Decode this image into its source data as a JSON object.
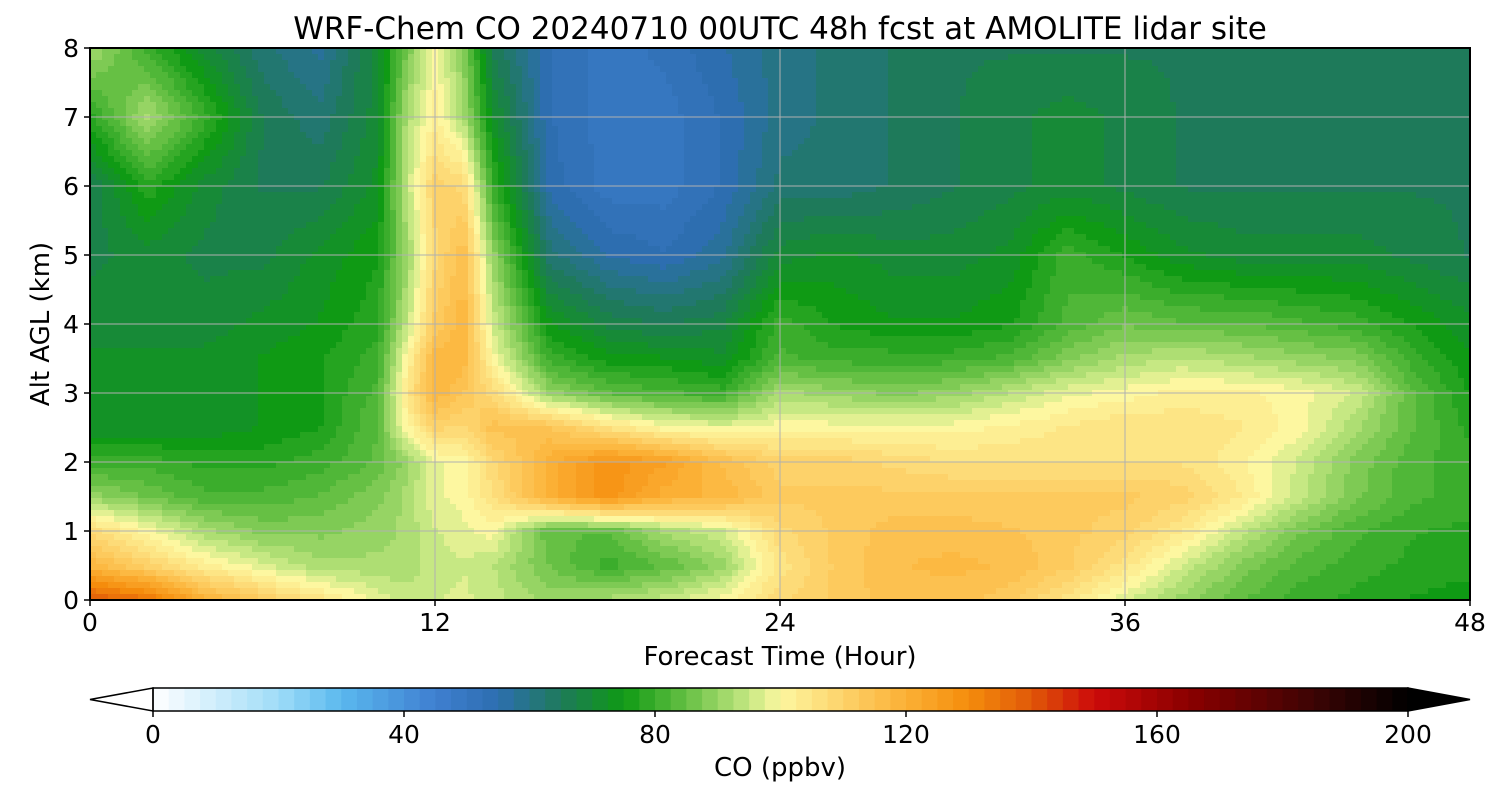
{
  "chart_data": {
    "type": "heatmap",
    "title": "WRF-Chem CO  20240710 00UTC 48h fcst at AMOLITE lidar site",
    "xlabel": "Forecast Time (Hour)",
    "ylabel": "Alt AGL (km)",
    "xlim": [
      0,
      48
    ],
    "ylim": [
      0,
      8
    ],
    "xticks": [
      0,
      12,
      24,
      36,
      48
    ],
    "yticks": [
      0,
      1,
      2,
      3,
      4,
      5,
      6,
      7,
      8
    ],
    "grid": true,
    "colorbar": {
      "label": "CO  (ppbv)",
      "range": [
        0,
        200
      ],
      "ticks": [
        0,
        40,
        80,
        120,
        160,
        200
      ],
      "extend": "both",
      "orientation": "horizontal",
      "placement": "bottom",
      "stops": [
        {
          "v": 0,
          "c": "#ffffff"
        },
        {
          "v": 20,
          "c": "#9fdcf8"
        },
        {
          "v": 30,
          "c": "#5ab8ee"
        },
        {
          "v": 45,
          "c": "#3f7fd0"
        },
        {
          "v": 55,
          "c": "#2d6eb0"
        },
        {
          "v": 65,
          "c": "#1e7a5a"
        },
        {
          "v": 75,
          "c": "#0f9a14"
        },
        {
          "v": 85,
          "c": "#66c044"
        },
        {
          "v": 95,
          "c": "#c6e883"
        },
        {
          "v": 100,
          "c": "#fdf7a0"
        },
        {
          "v": 110,
          "c": "#fdd26a"
        },
        {
          "v": 120,
          "c": "#fbb035"
        },
        {
          "v": 130,
          "c": "#f58c0c"
        },
        {
          "v": 140,
          "c": "#e05808"
        },
        {
          "v": 150,
          "c": "#cc0a0a"
        },
        {
          "v": 165,
          "c": "#8b0000"
        },
        {
          "v": 185,
          "c": "#3c0404"
        },
        {
          "v": 200,
          "c": "#000000"
        }
      ]
    },
    "field_estimate": {
      "x": [
        0,
        2,
        4,
        6,
        8,
        10,
        11,
        12,
        13,
        14,
        16,
        18,
        20,
        22,
        24,
        26,
        28,
        30,
        32,
        34,
        36,
        38,
        40,
        42,
        44,
        46,
        48
      ],
      "y": [
        0,
        0.5,
        1,
        1.5,
        2,
        2.5,
        3,
        3.5,
        4,
        5,
        6,
        7,
        8
      ],
      "z": [
        [
          140,
          135,
          120,
          112,
          105,
          98,
          95,
          96,
          97,
          95,
          90,
          92,
          95,
          100,
          108,
          112,
          115,
          115,
          112,
          105,
          97,
          90,
          84,
          80,
          78,
          76,
          75
        ],
        [
          118,
          110,
          102,
          97,
          92,
          92,
          92,
          95,
          96,
          94,
          86,
          80,
          84,
          90,
          105,
          112,
          116,
          117,
          116,
          112,
          105,
          96,
          88,
          83,
          80,
          78,
          77
        ],
        [
          108,
          100,
          92,
          88,
          88,
          90,
          92,
          96,
          98,
          100,
          84,
          84,
          92,
          96,
          108,
          112,
          115,
          115,
          114,
          112,
          110,
          104,
          95,
          87,
          82,
          79,
          78
        ],
        [
          90,
          86,
          82,
          82,
          84,
          88,
          92,
          98,
          100,
          106,
          120,
          128,
          120,
          118,
          112,
          112,
          112,
          112,
          112,
          112,
          112,
          110,
          104,
          95,
          87,
          82,
          80
        ],
        [
          80,
          80,
          78,
          78,
          80,
          84,
          90,
          98,
          100,
          108,
          120,
          128,
          124,
          116,
          110,
          110,
          108,
          106,
          106,
          106,
          106,
          106,
          102,
          96,
          88,
          82,
          80
        ],
        [
          72,
          72,
          72,
          74,
          76,
          84,
          100,
          110,
          108,
          115,
          114,
          106,
          100,
          98,
          100,
          100,
          100,
          100,
          102,
          104,
          106,
          106,
          104,
          100,
          92,
          84,
          78
        ],
        [
          72,
          72,
          72,
          74,
          76,
          82,
          104,
          118,
          114,
          108,
          90,
          84,
          82,
          80,
          92,
          90,
          88,
          90,
          94,
          98,
          100,
          102,
          102,
          100,
          96,
          84,
          76
        ],
        [
          72,
          72,
          72,
          74,
          76,
          80,
          100,
          118,
          118,
          100,
          80,
          75,
          74,
          72,
          82,
          80,
          80,
          80,
          82,
          88,
          92,
          94,
          92,
          90,
          88,
          80,
          74
        ],
        [
          70,
          70,
          70,
          72,
          74,
          78,
          94,
          112,
          118,
          96,
          74,
          68,
          66,
          68,
          80,
          76,
          74,
          74,
          76,
          82,
          86,
          84,
          84,
          82,
          80,
          76,
          72
        ],
        [
          68,
          70,
          68,
          68,
          72,
          76,
          90,
          108,
          116,
          90,
          62,
          56,
          54,
          58,
          70,
          72,
          70,
          70,
          72,
          80,
          76,
          72,
          70,
          70,
          70,
          68,
          66
        ],
        [
          66,
          78,
          70,
          66,
          66,
          72,
          94,
          110,
          108,
          80,
          55,
          50,
          50,
          54,
          62,
          62,
          64,
          66,
          68,
          70,
          68,
          66,
          66,
          66,
          66,
          66,
          66
        ],
        [
          78,
          92,
          80,
          66,
          62,
          70,
          92,
          102,
          92,
          72,
          54,
          50,
          50,
          54,
          60,
          62,
          64,
          66,
          68,
          70,
          68,
          66,
          66,
          66,
          66,
          66,
          66
        ],
        [
          92,
          80,
          70,
          62,
          58,
          70,
          86,
          100,
          88,
          66,
          54,
          50,
          52,
          56,
          60,
          62,
          64,
          66,
          66,
          66,
          66,
          66,
          66,
          66,
          66,
          66,
          66
        ]
      ]
    }
  }
}
